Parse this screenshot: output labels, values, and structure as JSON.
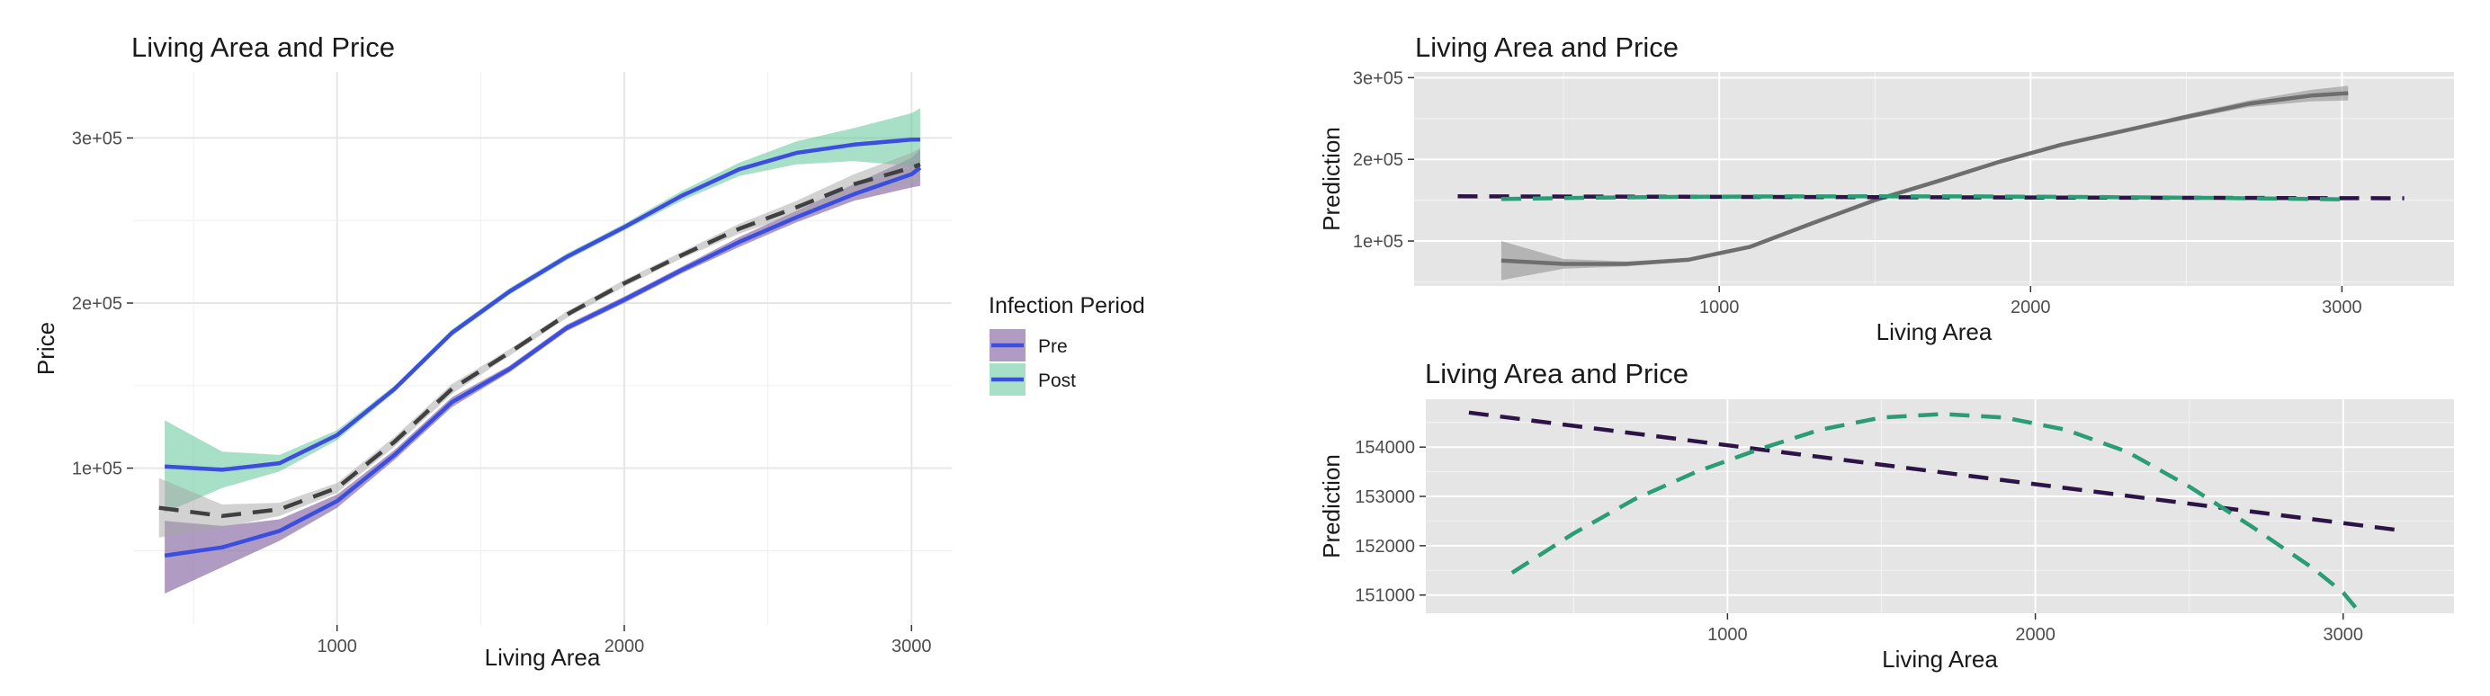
{
  "chart_data": [
    {
      "id": "left",
      "type": "line",
      "title": "Living Area and Price",
      "xlabel": "Living Area",
      "ylabel": "Price",
      "xlim": [
        290,
        3140
      ],
      "ylim": [
        5000,
        340000
      ],
      "x_ticks": [
        1000,
        2000,
        3000
      ],
      "x_tick_labels": [
        "1000",
        "2000",
        "3000"
      ],
      "y_ticks": [
        100000,
        200000,
        300000
      ],
      "y_tick_labels": [
        "1e+05",
        "2e+05",
        "3e+05"
      ],
      "background": "white",
      "grid": true,
      "legend": {
        "title": "Infection Period",
        "position": "right",
        "entries": [
          "Pre",
          "Post"
        ]
      },
      "series": [
        {
          "name": "Pre",
          "line_color": "#3b4ee0",
          "band_color": "#7b5a9a",
          "band_opacity": 0.6,
          "dash": "solid",
          "x": [
            400,
            600,
            800,
            1000,
            1200,
            1400,
            1600,
            1800,
            2000,
            2200,
            2400,
            2600,
            2800,
            3000,
            3030
          ],
          "y": [
            47000,
            52000,
            62000,
            80000,
            108000,
            140000,
            160000,
            185000,
            202000,
            220000,
            237000,
            252000,
            266000,
            278000,
            282000
          ],
          "lower": [
            24000,
            40000,
            56000,
            76000,
            105000,
            137000,
            158000,
            183000,
            200000,
            218000,
            234000,
            249000,
            262000,
            270000,
            271000
          ],
          "upper": [
            68000,
            65000,
            69000,
            84000,
            111000,
            143000,
            162000,
            187000,
            204000,
            222000,
            240000,
            256000,
            272000,
            288000,
            293000
          ]
        },
        {
          "name": "Post",
          "line_color": "#3b4ee0",
          "band_color": "#4fbf8f",
          "band_opacity": 0.5,
          "dash": "solid",
          "x": [
            400,
            600,
            800,
            1000,
            1200,
            1400,
            1600,
            1800,
            2000,
            2200,
            2400,
            2600,
            2800,
            3000,
            3030
          ],
          "y": [
            101000,
            99000,
            103000,
            120000,
            148000,
            182000,
            207000,
            228000,
            246000,
            265000,
            281000,
            291000,
            296000,
            299000,
            299000
          ],
          "lower": [
            73000,
            88000,
            98000,
            117000,
            146000,
            180000,
            205000,
            226000,
            244000,
            262000,
            277000,
            284000,
            286000,
            283000,
            281000
          ],
          "upper": [
            129000,
            110000,
            108000,
            123000,
            150000,
            184000,
            209000,
            230000,
            248000,
            268000,
            285000,
            298000,
            306000,
            315000,
            318000
          ]
        },
        {
          "name": "",
          "line_color": "#404040",
          "band_color": "#a6a6a6",
          "band_opacity": 0.5,
          "dash": "dashed",
          "x": [
            380,
            600,
            800,
            1000,
            1200,
            1400,
            1600,
            1800,
            2000,
            2200,
            2400,
            2600,
            2800,
            3000,
            3030
          ],
          "y": [
            76000,
            71000,
            75000,
            88000,
            116000,
            148000,
            170000,
            193000,
            212000,
            229000,
            245000,
            258000,
            272000,
            282000,
            284000
          ],
          "lower": [
            58000,
            64000,
            71000,
            85000,
            113000,
            145000,
            168000,
            191000,
            210000,
            227000,
            242000,
            254000,
            266000,
            273000,
            274000
          ],
          "upper": [
            94000,
            78000,
            79000,
            91000,
            119000,
            151000,
            172000,
            195000,
            214000,
            231000,
            248000,
            262000,
            278000,
            291000,
            294000
          ]
        }
      ]
    },
    {
      "id": "top-right",
      "type": "line",
      "title": "Living Area and Price",
      "xlabel": "Living Area",
      "ylabel": "Prediction",
      "xlim": [
        20,
        3360
      ],
      "ylim": [
        45000,
        307000
      ],
      "x_ticks": [
        1000,
        2000,
        3000
      ],
      "x_tick_labels": [
        "1000",
        "2000",
        "3000"
      ],
      "y_ticks": [
        100000,
        200000,
        300000
      ],
      "y_tick_labels": [
        "1e+05",
        "2e+05",
        "3e+05"
      ],
      "background": "grey",
      "grid": true,
      "series": [
        {
          "name": "",
          "line_color": "#6e6e6e",
          "band_color": "#8c8c8c",
          "band_opacity": 0.55,
          "dash": "solid",
          "x": [
            300,
            500,
            700,
            900,
            1100,
            1300,
            1500,
            1700,
            1900,
            2100,
            2300,
            2500,
            2700,
            2900,
            3020
          ],
          "y": [
            76000,
            72000,
            72000,
            77000,
            93000,
            122000,
            150000,
            173000,
            197000,
            218000,
            235000,
            252000,
            268000,
            278000,
            281000
          ],
          "lower": [
            52000,
            66000,
            69000,
            75000,
            91000,
            120000,
            148000,
            171000,
            195000,
            216000,
            233000,
            249000,
            264000,
            271000,
            272000
          ],
          "upper": [
            100000,
            78000,
            75000,
            79000,
            95000,
            124000,
            152000,
            175000,
            199000,
            220000,
            237000,
            255000,
            272000,
            285000,
            290000
          ]
        },
        {
          "name": "",
          "line_color": "#2d1446",
          "dash": "dashed",
          "x": [
            160,
            3200
          ],
          "y": [
            154700,
            152300
          ]
        },
        {
          "name": "",
          "line_color": "#2a9d74",
          "dash": "dashed",
          "x": [
            300,
            600,
            900,
            1200,
            1500,
            1800,
            2100,
            2400,
            2700,
            3000
          ],
          "y": [
            151500,
            153100,
            154100,
            154600,
            154700,
            154600,
            154100,
            153300,
            152300,
            151000
          ]
        }
      ]
    },
    {
      "id": "bottom-right",
      "type": "line",
      "title": "Living Area and Price",
      "xlabel": "Living Area",
      "ylabel": "Prediction",
      "xlim": [
        20,
        3360
      ],
      "ylim": [
        150630,
        154970
      ],
      "x_ticks": [
        1000,
        2000,
        3000
      ],
      "x_tick_labels": [
        "1000",
        "2000",
        "3000"
      ],
      "y_ticks": [
        151000,
        152000,
        153000,
        154000
      ],
      "y_tick_labels": [
        "151000",
        "152000",
        "153000",
        "154000"
      ],
      "background": "grey",
      "grid": true,
      "series": [
        {
          "name": "",
          "line_color": "#2d1446",
          "dash": "dashed",
          "x": [
            160,
            3200
          ],
          "y": [
            154700,
            152300
          ]
        },
        {
          "name": "",
          "line_color": "#2a9d74",
          "dash": "dashed",
          "x": [
            300,
            500,
            700,
            900,
            1100,
            1300,
            1500,
            1700,
            1900,
            2100,
            2300,
            2500,
            2700,
            2900,
            3000,
            3040
          ],
          "y": [
            151450,
            152250,
            152950,
            153500,
            153950,
            154350,
            154600,
            154670,
            154600,
            154350,
            153900,
            153200,
            152400,
            151550,
            151050,
            150750
          ]
        }
      ]
    }
  ]
}
